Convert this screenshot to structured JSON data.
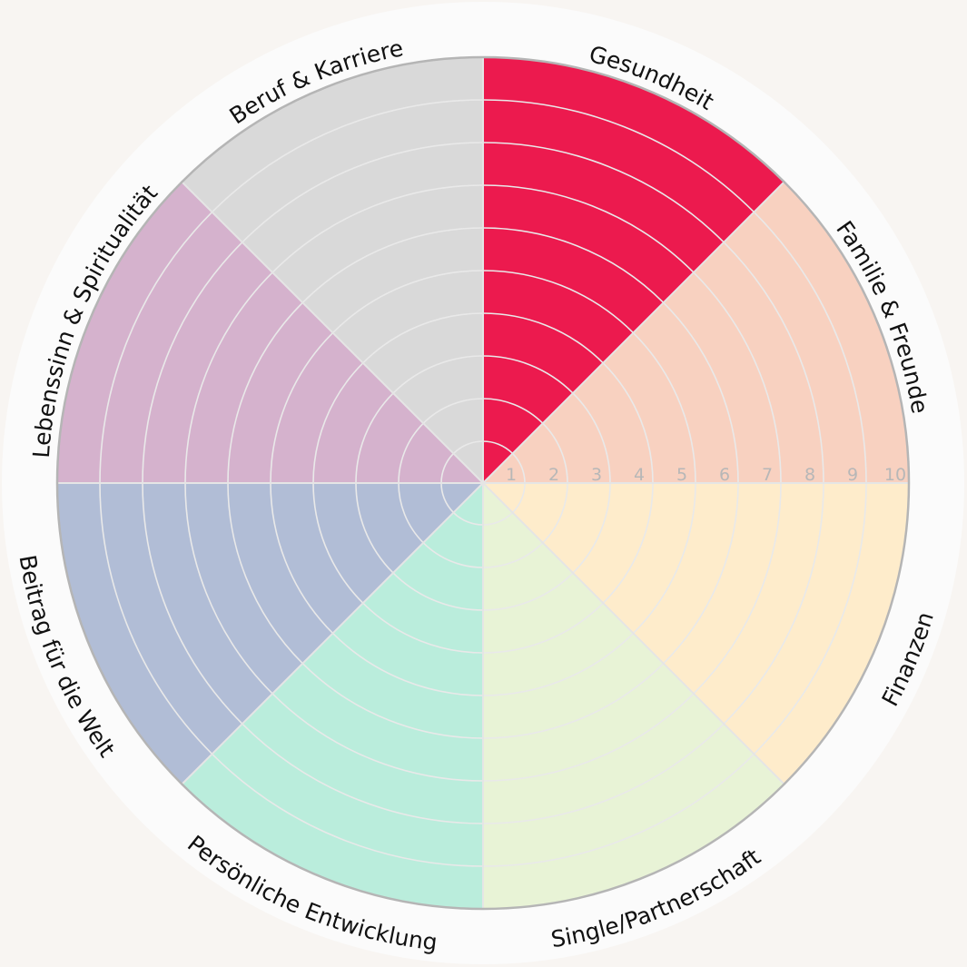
{
  "wheel": {
    "max_score": 10,
    "scale_labels": [
      "1",
      "2",
      "3",
      "4",
      "5",
      "6",
      "7",
      "8",
      "9",
      "10"
    ],
    "segments": [
      {
        "label": "Gesundheit",
        "color": "#ec1a4e"
      },
      {
        "label": "Familie & Freunde",
        "color": "#f8d1c0"
      },
      {
        "label": "Finanzen",
        "color": "#feeccb"
      },
      {
        "label": "Single/Partnerschaft",
        "color": "#e8f3d6"
      },
      {
        "label": "Persönliche Entwicklung",
        "color": "#baeddc"
      },
      {
        "label": "Beitrag für die Welt",
        "color": "#b1bdd6"
      },
      {
        "label": "Lebenssinn & Spiritualität",
        "color": "#d5b2cd"
      },
      {
        "label": "Beruf & Karriere",
        "color": "#d9d9d9"
      }
    ]
  }
}
